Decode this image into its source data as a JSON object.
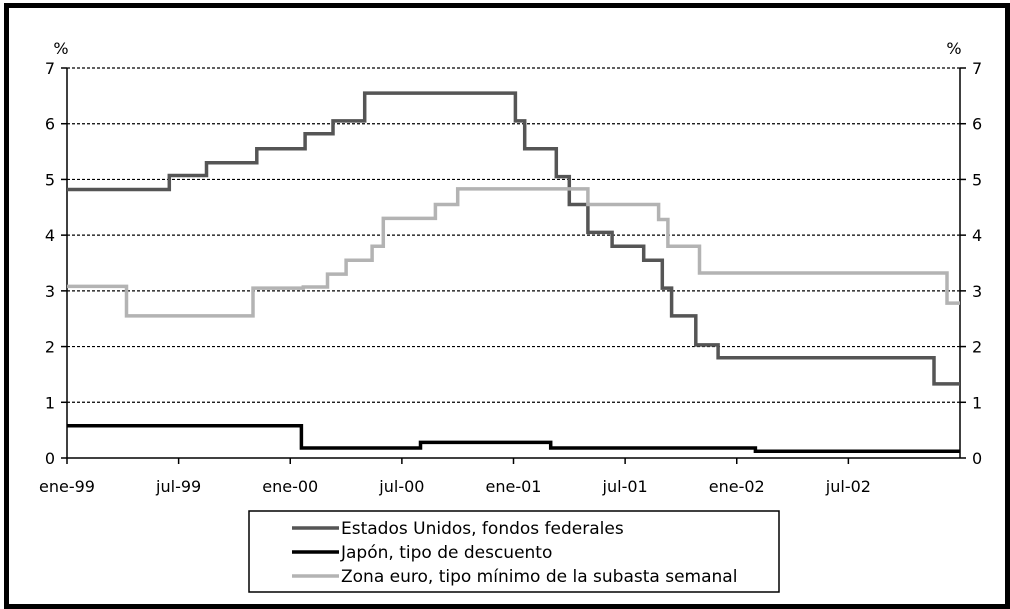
{
  "chart_data": {
    "type": "line",
    "step": true,
    "y_unit_left": "%",
    "y_unit_right": "%",
    "ylim": [
      0,
      7
    ],
    "yticks": [
      0,
      1,
      2,
      3,
      4,
      5,
      6,
      7
    ],
    "xlim": [
      0,
      48
    ],
    "xticks": [
      {
        "label": "ene-99",
        "x": 0
      },
      {
        "label": "jul-99",
        "x": 6
      },
      {
        "label": "ene-00",
        "x": 12
      },
      {
        "label": "jul-00",
        "x": 18
      },
      {
        "label": "ene-01",
        "x": 24
      },
      {
        "label": "jul-01",
        "x": 30
      },
      {
        "label": "ene-02",
        "x": 36
      },
      {
        "label": "jul-02",
        "x": 42
      }
    ],
    "grid": "horizontal-dashed",
    "legend_position": "bottom-center",
    "series": [
      {
        "name": "Estados Unidos, fondos federales",
        "color": "#555555",
        "points": [
          [
            0,
            4.82
          ],
          [
            5.5,
            4.82
          ],
          [
            5.5,
            5.07
          ],
          [
            7.5,
            5.07
          ],
          [
            7.5,
            5.3
          ],
          [
            10.2,
            5.3
          ],
          [
            10.2,
            5.55
          ],
          [
            12.8,
            5.55
          ],
          [
            12.8,
            5.82
          ],
          [
            14.3,
            5.82
          ],
          [
            14.3,
            6.05
          ],
          [
            16,
            6.05
          ],
          [
            16,
            6.55
          ],
          [
            24.1,
            6.55
          ],
          [
            24.1,
            6.05
          ],
          [
            24.6,
            6.05
          ],
          [
            24.6,
            5.55
          ],
          [
            26.3,
            5.55
          ],
          [
            26.3,
            5.05
          ],
          [
            27,
            5.05
          ],
          [
            27,
            4.55
          ],
          [
            28,
            4.55
          ],
          [
            28,
            4.05
          ],
          [
            29.3,
            4.05
          ],
          [
            29.3,
            3.8
          ],
          [
            31,
            3.8
          ],
          [
            31,
            3.55
          ],
          [
            32,
            3.55
          ],
          [
            32,
            3.05
          ],
          [
            32.5,
            3.05
          ],
          [
            32.5,
            2.55
          ],
          [
            33.8,
            2.55
          ],
          [
            33.8,
            2.03
          ],
          [
            35,
            2.03
          ],
          [
            35,
            1.8
          ],
          [
            46.6,
            1.8
          ],
          [
            46.6,
            1.33
          ],
          [
            48,
            1.33
          ]
        ]
      },
      {
        "name": "Japón, tipo de descuento",
        "color": "#000000",
        "points": [
          [
            0,
            0.58
          ],
          [
            12.6,
            0.58
          ],
          [
            12.6,
            0.18
          ],
          [
            19,
            0.18
          ],
          [
            19,
            0.28
          ],
          [
            26,
            0.28
          ],
          [
            26,
            0.18
          ],
          [
            37,
            0.18
          ],
          [
            37,
            0.12
          ],
          [
            48,
            0.12
          ]
        ]
      },
      {
        "name": "Zona euro, tipo mínimo de la subasta semanal",
        "color": "#b3b3b3",
        "points": [
          [
            0,
            3.08
          ],
          [
            3.2,
            3.08
          ],
          [
            3.2,
            2.55
          ],
          [
            10,
            2.55
          ],
          [
            10,
            3.05
          ],
          [
            12.7,
            3.05
          ],
          [
            12.7,
            3.07
          ],
          [
            14,
            3.07
          ],
          [
            14,
            3.3
          ],
          [
            15,
            3.3
          ],
          [
            15,
            3.55
          ],
          [
            16.4,
            3.55
          ],
          [
            16.4,
            3.8
          ],
          [
            17,
            3.8
          ],
          [
            17,
            4.3
          ],
          [
            19.8,
            4.3
          ],
          [
            19.8,
            4.55
          ],
          [
            21,
            4.55
          ],
          [
            21,
            4.83
          ],
          [
            28,
            4.83
          ],
          [
            28,
            4.55
          ],
          [
            31.8,
            4.55
          ],
          [
            31.8,
            4.28
          ],
          [
            32.3,
            4.28
          ],
          [
            32.3,
            3.8
          ],
          [
            34,
            3.8
          ],
          [
            34,
            3.32
          ],
          [
            47.3,
            3.32
          ],
          [
            47.3,
            2.78
          ],
          [
            48,
            2.78
          ]
        ]
      }
    ]
  }
}
